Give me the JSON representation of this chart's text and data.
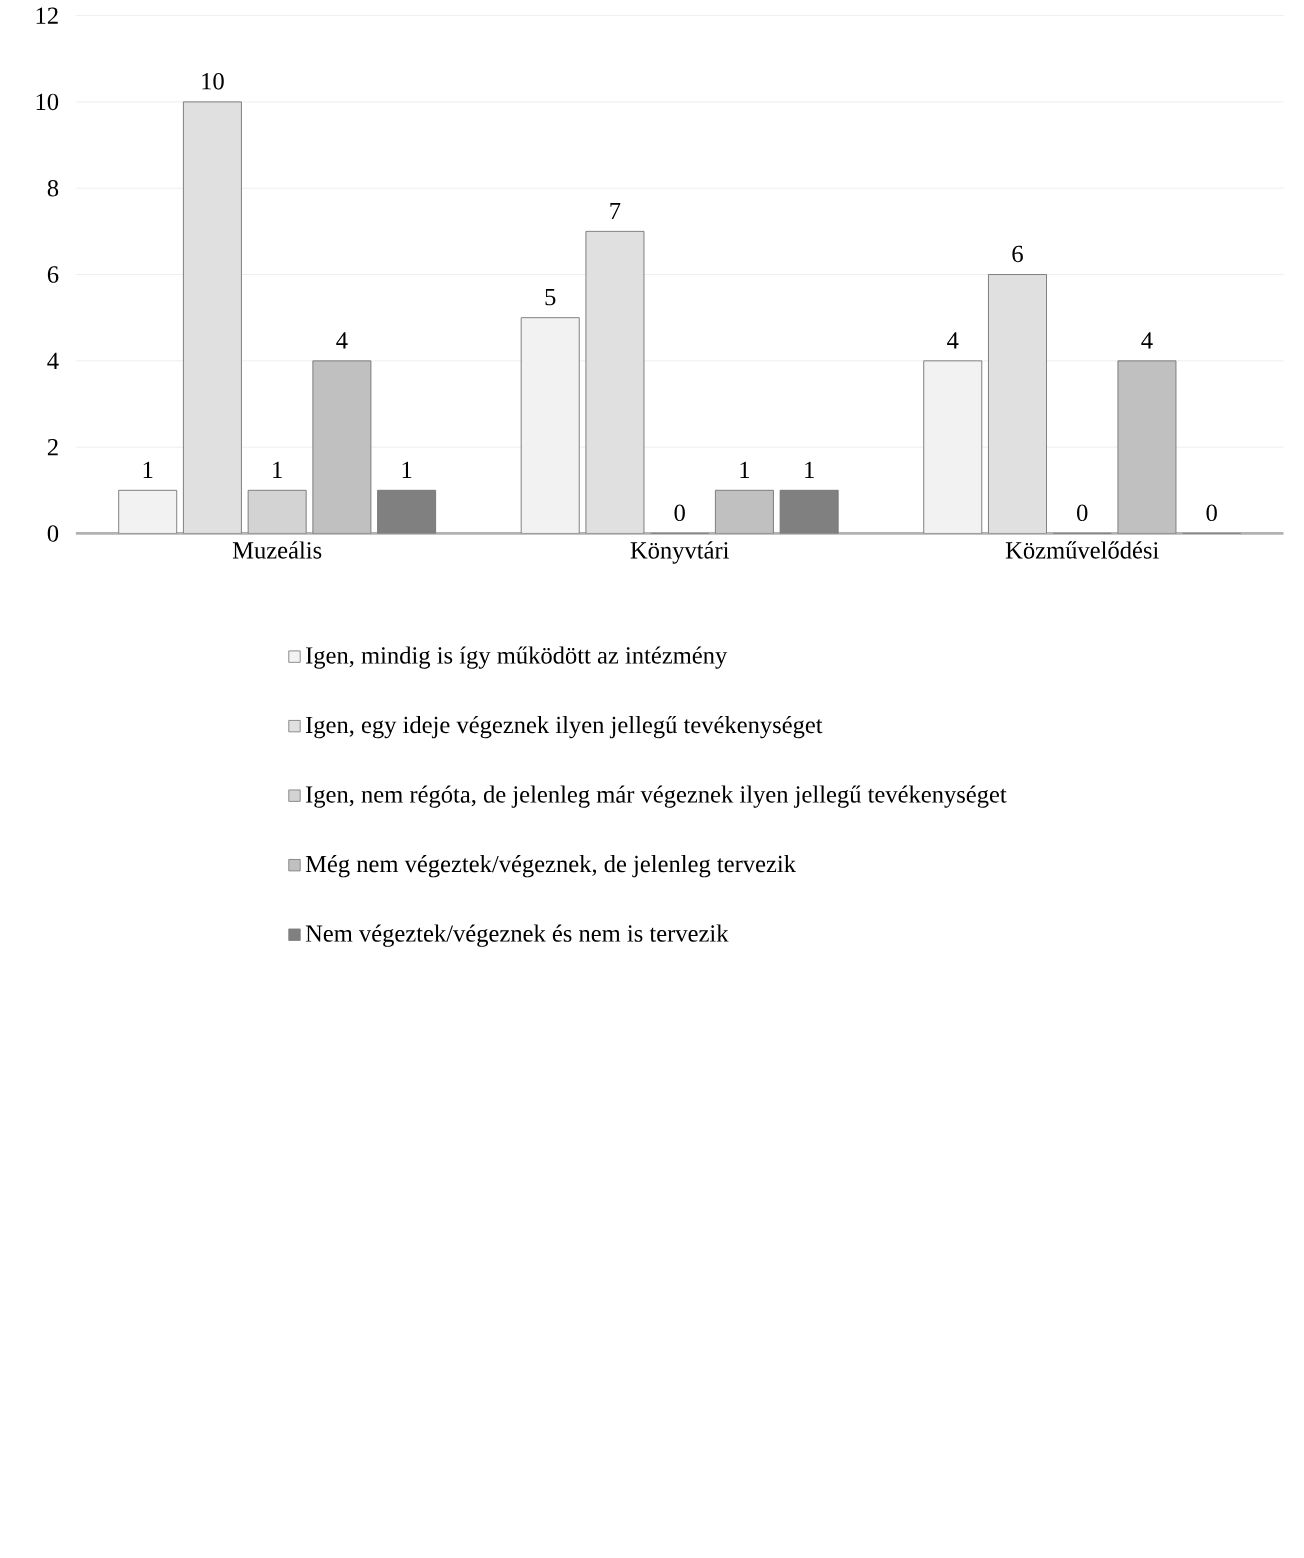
{
  "chart_data": {
    "type": "bar",
    "categories": [
      "Muzeális",
      "Könyvtári",
      "Közművelődési"
    ],
    "series": [
      {
        "name": "Igen, mindig is így működött az intézmény",
        "color": "#f2f2f2",
        "values": [
          1,
          5,
          4
        ]
      },
      {
        "name": "Igen, egy ideje végeznek ilyen jellegű tevékenységet",
        "color": "#e0e0e0",
        "values": [
          10,
          7,
          6
        ]
      },
      {
        "name": "Igen, nem régóta, de jelenleg már végeznek ilyen jellegű tevékenységet",
        "color": "#d3d3d3",
        "values": [
          1,
          0,
          0
        ]
      },
      {
        "name": "Még nem végeztek/végeznek, de jelenleg tervezik",
        "color": "#c0c0c0",
        "values": [
          4,
          1,
          4
        ]
      },
      {
        "name": "Nem végeztek/végeznek és nem is tervezik",
        "color": "#808080",
        "values": [
          1,
          1,
          0
        ]
      }
    ],
    "ylim": [
      0,
      12
    ],
    "yticks": [
      0,
      2,
      4,
      6,
      8,
      10,
      12
    ],
    "grid": "y",
    "legend": "bottom",
    "data_labels": true
  }
}
